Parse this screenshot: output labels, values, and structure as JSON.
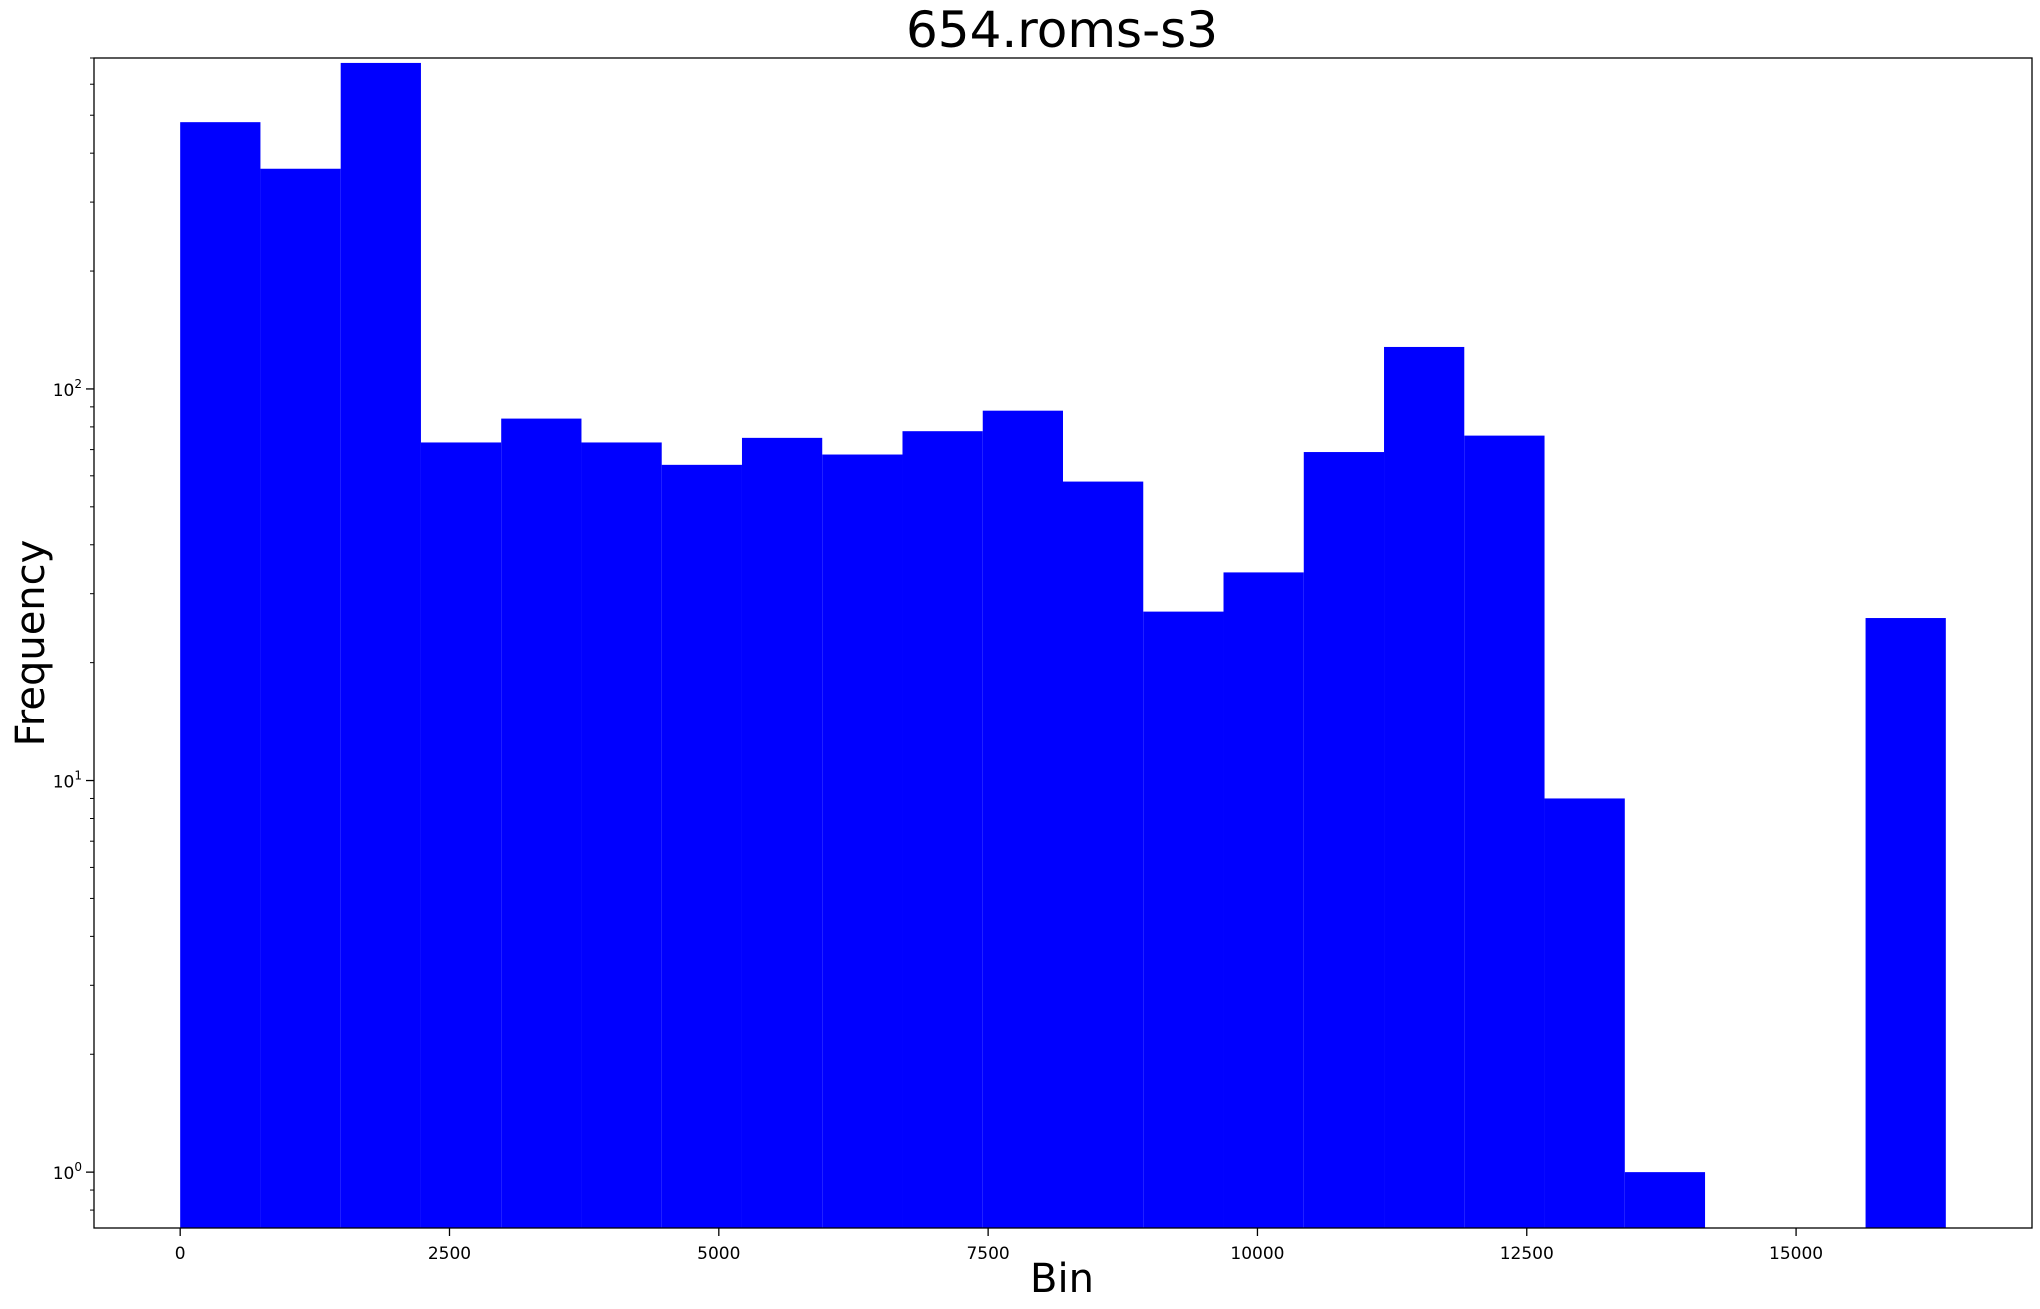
{
  "chart_data": {
    "type": "bar",
    "title": "654.roms-s3",
    "xlabel": "Bin",
    "ylabel": "Frequency",
    "yscale": "log",
    "xlim": [
      -800,
      17190
    ],
    "ylim": [
      0.72,
      700
    ],
    "xticks": [
      0,
      2500,
      5000,
      7500,
      10000,
      12500,
      15000
    ],
    "yticks": [
      {
        "value": 1,
        "base": "10",
        "exp": "0"
      },
      {
        "value": 10,
        "base": "10",
        "exp": "1"
      },
      {
        "value": 100,
        "base": "10",
        "exp": "2"
      }
    ],
    "bar_color": "#0000ff",
    "grid": false,
    "bin_edges": [
      0,
      745,
      1490,
      2235,
      2980,
      3725,
      4470,
      5215,
      5960,
      6705,
      7450,
      8195,
      8940,
      9685,
      10430,
      11175,
      11920,
      12665,
      13410,
      14155,
      14900,
      15645,
      16390
    ],
    "values": [
      480,
      365,
      680,
      73,
      84,
      73,
      64,
      75,
      68,
      78,
      88,
      58,
      27,
      34,
      69,
      128,
      76,
      9,
      1,
      0,
      0,
      26
    ]
  }
}
